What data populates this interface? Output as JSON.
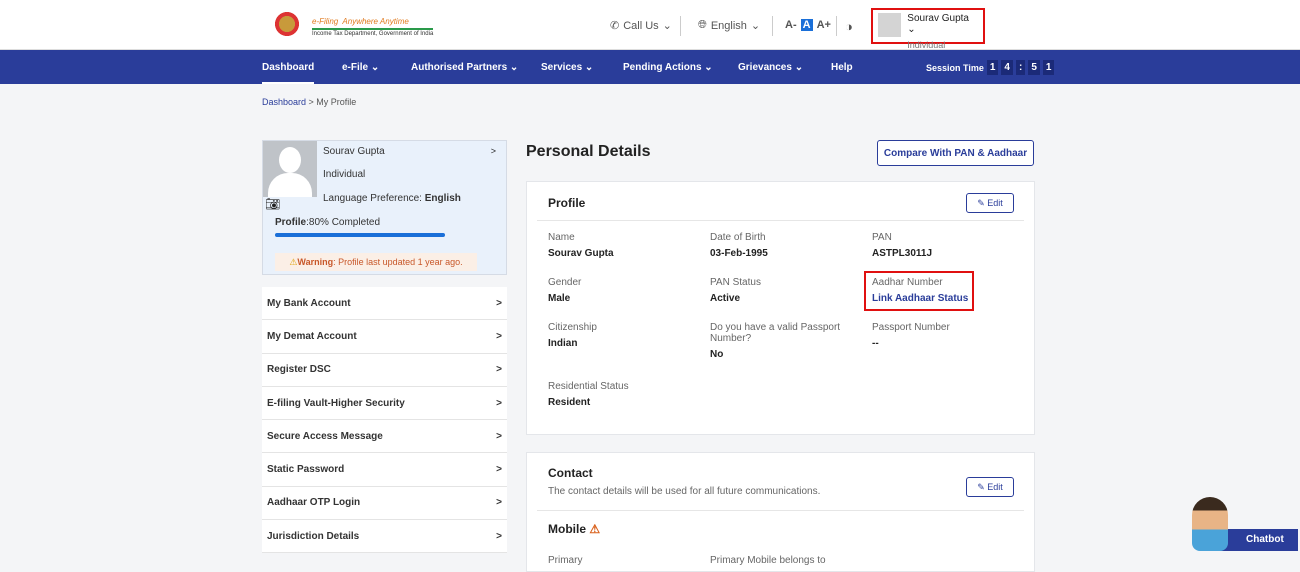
{
  "header": {
    "logo_title": "e-Filing",
    "logo_tagline": "Anywhere Anytime",
    "logo_sub": "Income Tax Department, Government of India",
    "call_us": "Call Us",
    "language": "English",
    "font_small": "A-",
    "font_normal": "A",
    "font_large": "A+",
    "user_name": "Sourav Gupta",
    "user_role": "Individual"
  },
  "nav": {
    "items": [
      "Dashboard",
      "e-File",
      "Authorised Partners",
      "Services",
      "Pending Actions",
      "Grievances",
      "Help"
    ],
    "session_label": "Session Time",
    "session_digits": [
      "1",
      "4",
      ":",
      "5",
      "1"
    ]
  },
  "breadcrumb": {
    "home": "Dashboard",
    "current": "My Profile"
  },
  "profile_card": {
    "name": "Sourav Gupta",
    "role": "Individual",
    "lang_label": "Language Preference: ",
    "lang_value": "English",
    "progress_label": "Profile",
    "progress_text": ":80% Completed",
    "progress_percent": 80,
    "warning_label": "Warning",
    "warning_text": ": Profile last updated 1 year ago."
  },
  "menu": [
    "My Bank Account",
    "My Demat Account",
    "Register DSC",
    "E-filing Vault-Higher Security",
    "Secure Access Message",
    "Static Password",
    "Aadhaar OTP Login",
    "Jurisdiction Details"
  ],
  "main": {
    "title": "Personal Details",
    "compare_button": "Compare With PAN & Aadhaar",
    "edit": "Edit",
    "profile": {
      "title": "Profile",
      "fields": [
        {
          "k": "Name",
          "v": "Sourav Gupta"
        },
        {
          "k": "Date of Birth",
          "v": "03-Feb-1995"
        },
        {
          "k": "PAN",
          "v": "ASTPL3011J"
        },
        {
          "k": "Gender",
          "v": "Male"
        },
        {
          "k": "PAN Status",
          "v": "Active"
        },
        {
          "k": "Aadhar Number",
          "v": "Link Aadhaar Status"
        },
        {
          "k": "Citizenship",
          "v": "Indian"
        },
        {
          "k": "Do you have a valid Passport Number?",
          "v": "No"
        },
        {
          "k": "Passport Number",
          "v": "--"
        },
        {
          "k": "Residential Status",
          "v": "Resident"
        }
      ]
    },
    "contact": {
      "title": "Contact",
      "desc": "The contact details will be used for all future communications.",
      "mobile": "Mobile",
      "primary": "Primary",
      "primary_belongs": "Primary Mobile belongs to"
    }
  },
  "chatbot": "Chatbot"
}
